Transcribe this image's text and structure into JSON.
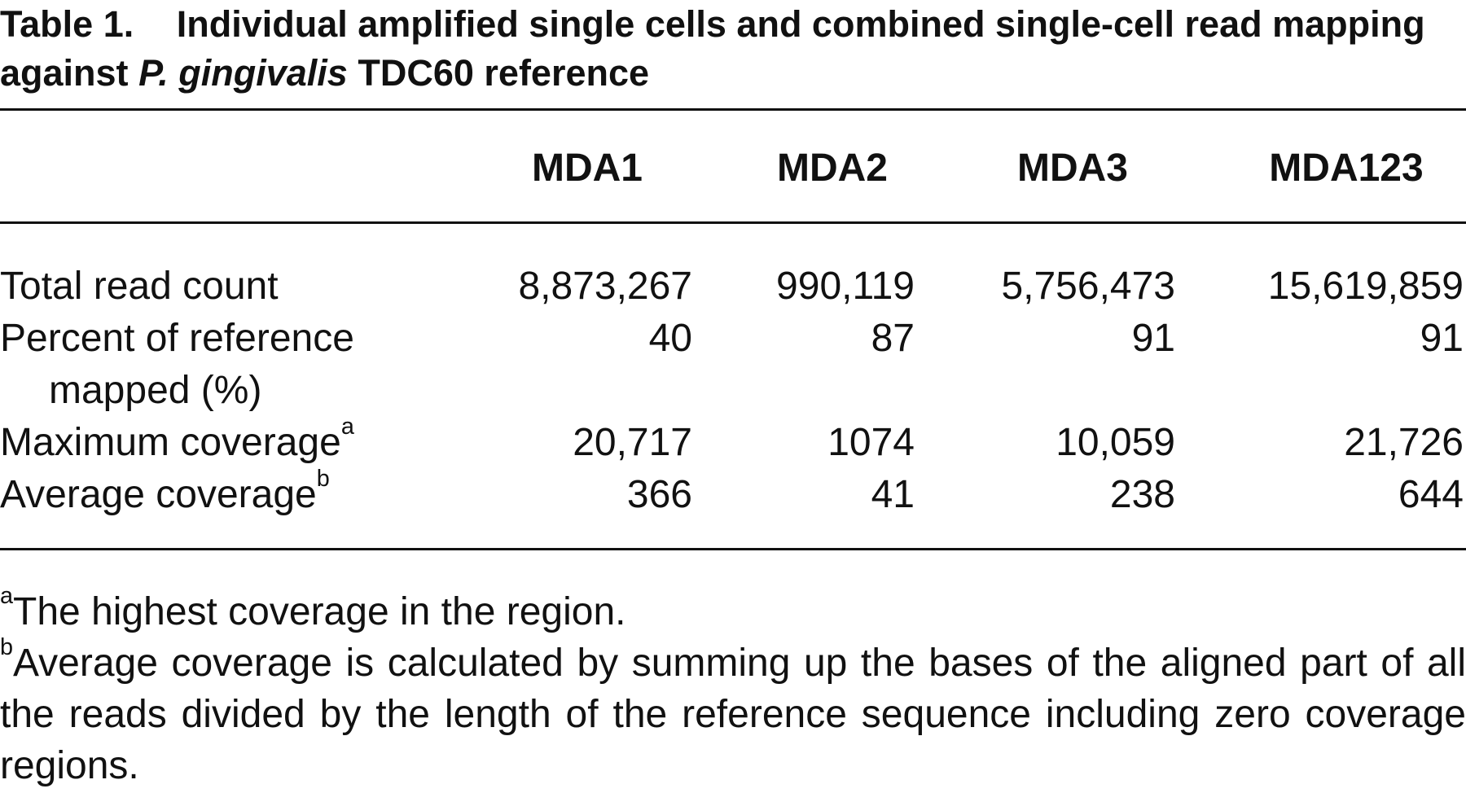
{
  "title": {
    "label": "Table 1.",
    "text_before": "Individual amplified single cells and combined single-cell read mapping against",
    "species": "P. gingivalis",
    "text_after": "TDC60 reference"
  },
  "table": {
    "columns": [
      "MDA1",
      "MDA2",
      "MDA3",
      "MDA123"
    ],
    "rows": [
      {
        "label": "Total read count",
        "values": [
          "8,873,267",
          "990,119",
          "5,756,473",
          "15,619,859"
        ]
      },
      {
        "label": "Percent of reference mapped (%)",
        "values": [
          "40",
          "87",
          "91",
          "91"
        ]
      },
      {
        "label": "Maximum coverage",
        "note": "a",
        "values": [
          "20,717",
          "1074",
          "10,059",
          "21,726"
        ]
      },
      {
        "label": "Average coverage",
        "note": "b",
        "values": [
          "366",
          "41",
          "238",
          "644"
        ]
      }
    ]
  },
  "footnotes": [
    {
      "mark": "a",
      "text": "The highest coverage in the region."
    },
    {
      "mark": "b",
      "text": "Average coverage is calculated by summing up the bases of the aligned part of all the reads divided by the length of the reference sequence including zero coverage regions."
    }
  ]
}
